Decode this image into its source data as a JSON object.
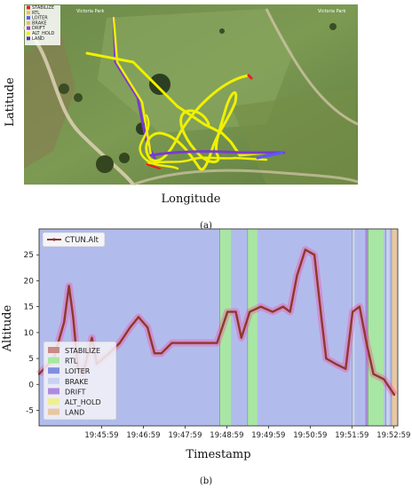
{
  "panel_a": {
    "label": "(a)",
    "ylabel": "Latitude",
    "xlabel": "Longitude",
    "map_label_left": "Victoria Park",
    "map_label_right": "Victoria Park",
    "legend": [
      {
        "name": "STABILIZE",
        "color": "#e81c24"
      },
      {
        "name": "RTL",
        "color": "#f2c530"
      },
      {
        "name": "LOITER",
        "color": "#5a5aff"
      },
      {
        "name": "BRAKE",
        "color": "#e8c060"
      },
      {
        "name": "DRIFT",
        "color": "#9b3fd0"
      },
      {
        "name": "ALT_HOLD",
        "color": "#f0f000"
      },
      {
        "name": "LAND",
        "color": "#4a3ab8"
      }
    ]
  },
  "panel_b": {
    "label": "(b)",
    "ylabel": "Altitude",
    "xlabel": "Timestamp"
  },
  "chart_data": {
    "type": "line",
    "series": [
      {
        "name": "CTUN.Alt",
        "color": "#8b3a2a",
        "points": [
          [
            "19:44:29",
            2
          ],
          [
            "19:44:50",
            5
          ],
          [
            "19:45:05",
            12
          ],
          [
            "19:45:12",
            19
          ],
          [
            "19:45:18",
            13
          ],
          [
            "19:45:25",
            3
          ],
          [
            "19:45:32",
            2
          ],
          [
            "19:45:45",
            9
          ],
          [
            "19:45:52",
            4
          ],
          [
            "19:46:10",
            6
          ],
          [
            "19:46:25",
            8
          ],
          [
            "19:46:40",
            11
          ],
          [
            "19:46:52",
            13
          ],
          [
            "19:47:05",
            11
          ],
          [
            "19:47:15",
            6
          ],
          [
            "19:47:25",
            6
          ],
          [
            "19:47:40",
            8
          ],
          [
            "19:48:00",
            8
          ],
          [
            "19:48:20",
            8
          ],
          [
            "19:48:45",
            8
          ],
          [
            "19:49:00",
            14
          ],
          [
            "19:49:12",
            14
          ],
          [
            "19:49:20",
            9
          ],
          [
            "19:49:32",
            14
          ],
          [
            "19:49:48",
            15
          ],
          [
            "19:50:05",
            14
          ],
          [
            "19:50:20",
            15
          ],
          [
            "19:50:30",
            14
          ],
          [
            "19:50:40",
            21
          ],
          [
            "19:50:52",
            26
          ],
          [
            "19:51:05",
            25
          ],
          [
            "19:51:15",
            13
          ],
          [
            "19:51:22",
            5
          ],
          [
            "19:51:35",
            4
          ],
          [
            "19:51:50",
            3
          ],
          [
            "19:52:00",
            14
          ],
          [
            "19:52:10",
            15
          ],
          [
            "19:52:20",
            8
          ],
          [
            "19:52:30",
            2
          ],
          [
            "19:52:45",
            1
          ],
          [
            "19:53:00",
            -2
          ]
        ]
      }
    ],
    "ylim": [
      -8,
      30
    ],
    "yticks": [
      -5,
      0,
      5,
      10,
      15,
      20,
      25
    ],
    "xticks": [
      "19:45:59",
      "19:46:59",
      "19:47:59",
      "19:48:59",
      "19:49:59",
      "19:50:59",
      "19:51:59",
      "19:52:59"
    ],
    "xlim": [
      "19:44:29",
      "19:53:05"
    ],
    "background_mode": "LOITER",
    "mode_bands": [
      {
        "mode": "RTL",
        "start": "19:48:49",
        "end": "19:49:05"
      },
      {
        "mode": "RTL",
        "start": "19:49:29",
        "end": "19:49:43"
      },
      {
        "mode": "BRAKE",
        "start": "19:51:59",
        "end": "19:52:03"
      },
      {
        "mode": "DRIFT",
        "start": "19:52:19",
        "end": "19:52:22"
      },
      {
        "mode": "RTL",
        "start": "19:52:22",
        "end": "19:52:45"
      },
      {
        "mode": "BRAKE",
        "start": "19:52:48",
        "end": "19:52:53"
      },
      {
        "mode": "LAND",
        "start": "19:52:56",
        "end": "19:53:05"
      }
    ],
    "legend_top": [
      "CTUN.Alt"
    ],
    "legend_modes": [
      {
        "name": "STABILIZE",
        "color": "#c98a84"
      },
      {
        "name": "RTL",
        "color": "#a8e8a0"
      },
      {
        "name": "LOITER",
        "color": "#7f8fe0"
      },
      {
        "name": "BRAKE",
        "color": "#c8d2f0"
      },
      {
        "name": "DRIFT",
        "color": "#b08ae0"
      },
      {
        "name": "ALT_HOLD",
        "color": "#f0f08a"
      },
      {
        "name": "LAND",
        "color": "#e8c8a0"
      }
    ],
    "legend_placement": "top-left and lower-left",
    "grid": false
  }
}
